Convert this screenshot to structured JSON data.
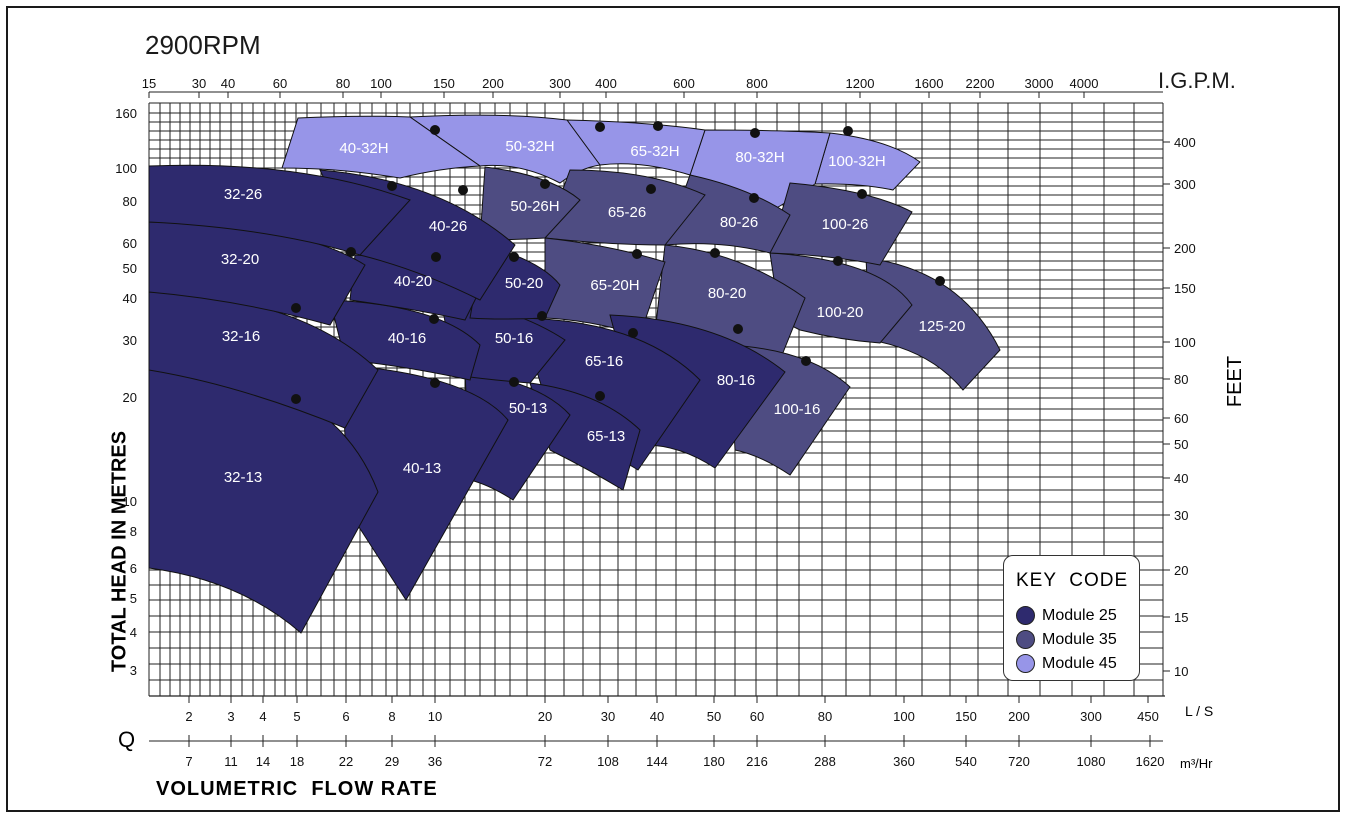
{
  "title": "2900RPM",
  "top_axis_label": "I.G.P.M.",
  "y_axis_label": "TOTAL HEAD IN METRES",
  "y2_axis_label": "FEET",
  "x_axis_label": "VOLUMETRIC  FLOW RATE",
  "q_label": "Q",
  "ls_label": "L / S",
  "m3_label": "m³/Hr",
  "legend": {
    "title": "KEY  CODE",
    "items": [
      {
        "label": "Module  25",
        "color": "#2e2a6e"
      },
      {
        "label": "Module  35",
        "color": "#4e4c82"
      },
      {
        "label": "Module  45",
        "color": "#9795e8"
      }
    ]
  },
  "chart_data": {
    "type": "area",
    "y_ticks_m": [
      "160",
      "100",
      "80",
      "60",
      "50",
      "40",
      "30",
      "20",
      "10",
      "8",
      "6",
      "5",
      "4",
      "3"
    ],
    "y_ticks_ft": [
      "400",
      "300",
      "200",
      "150",
      "100",
      "80",
      "60",
      "50",
      "40",
      "30",
      "20",
      "15",
      "10"
    ],
    "igpm_ticks": [
      "15",
      "30",
      "40",
      "60",
      "80",
      "100",
      "150",
      "200",
      "300",
      "400",
      "600",
      "800",
      "1200",
      "1600",
      "2200",
      "3000",
      "4000"
    ],
    "ls_ticks": [
      "2",
      "3",
      "4",
      "5",
      "6",
      "8",
      "10",
      "20",
      "30",
      "40",
      "50",
      "60",
      "80",
      "100",
      "150",
      "200",
      "300",
      "450"
    ],
    "m3hr_ticks": [
      "7",
      "11",
      "14",
      "18",
      "22",
      "29",
      "36",
      "72",
      "108",
      "144",
      "180",
      "216",
      "288",
      "360",
      "540",
      "720",
      "1080",
      "1620"
    ],
    "regions": [
      {
        "name": "32-13",
        "module": 25
      },
      {
        "name": "32-16",
        "module": 25
      },
      {
        "name": "32-20",
        "module": 25
      },
      {
        "name": "32-26",
        "module": 25
      },
      {
        "name": "40-13",
        "module": 25
      },
      {
        "name": "40-16",
        "module": 25
      },
      {
        "name": "40-20",
        "module": 25
      },
      {
        "name": "40-26",
        "module": 25
      },
      {
        "name": "50-13",
        "module": 25
      },
      {
        "name": "50-16",
        "module": 25
      },
      {
        "name": "50-20",
        "module": 25
      },
      {
        "name": "65-13",
        "module": 25
      },
      {
        "name": "65-16",
        "module": 25
      },
      {
        "name": "80-16",
        "module": 25
      },
      {
        "name": "50-26H",
        "module": 35
      },
      {
        "name": "65-26",
        "module": 35
      },
      {
        "name": "65-20H",
        "module": 35
      },
      {
        "name": "80-26",
        "module": 35
      },
      {
        "name": "80-20",
        "module": 35
      },
      {
        "name": "100-26",
        "module": 35
      },
      {
        "name": "100-20",
        "module": 35
      },
      {
        "name": "100-16",
        "module": 35
      },
      {
        "name": "125-20",
        "module": 35
      },
      {
        "name": "40-32H",
        "module": 45
      },
      {
        "name": "50-32H",
        "module": 45
      },
      {
        "name": "65-32H",
        "module": 45
      },
      {
        "name": "80-32H",
        "module": 45
      },
      {
        "name": "100-32H",
        "module": 45
      }
    ]
  }
}
